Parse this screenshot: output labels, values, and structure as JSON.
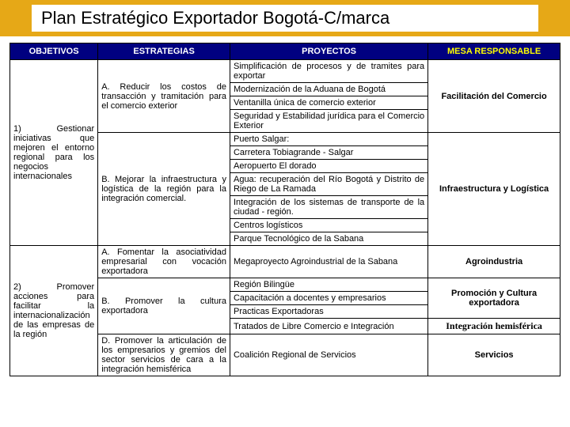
{
  "title": "Plan Estratégico Exportador Bogotá-C/marca",
  "colors": {
    "header_bg": "#000080",
    "header_fg": "#ffffff",
    "mesa_fg": "#ffff00",
    "title_bar_bg": "#e6a817",
    "border": "#000000",
    "page_bg": "#ffffff"
  },
  "headers": {
    "objetivos": "OBJETIVOS",
    "estrategias": "ESTRATEGIAS",
    "proyectos": "PROYECTOS",
    "mesa": "MESA RESPONSABLE"
  },
  "objetivos": {
    "o1": "1) Gestionar iniciativas que mejoren el entorno regional para los negocios internacionales",
    "o2": "2) Promover acciones para facilitar la internacionalización de las empresas de la región"
  },
  "estrategias": {
    "a1": "A. Reducir los costos de transacción y tramitación para el comercio exterior",
    "b1": "B. Mejorar la infraestructura y logística de la región para la integración comercial.",
    "a2": "A. Fomentar la asociatividad empresarial con vocación exportadora",
    "b2": "B. Promover la cultura exportadora",
    "d2": "D. Promover la articulación de los empresarios y gremios del sector servicios de cara a la integración hemisférica"
  },
  "proyectos": {
    "p1": "Simplificación de procesos y de tramites para exportar",
    "p2": "Modernización de la Aduana de Bogotá",
    "p3": "Ventanilla única de comercio exterior",
    "p4": "Seguridad y Estabilidad jurídica para el Comercio Exterior",
    "p5": "Puerto Salgar:",
    "p6": "Carretera Tobiagrande - Salgar",
    "p7": "Aeropuerto El dorado",
    "p8": "Agua: recuperación del Río Bogotá y Distrito de Riego de La Ramada",
    "p9": "Integración de los sistemas de transporte de la ciudad - región.",
    "p10": "Centros logísticos",
    "p11": "Parque Tecnológico de la Sabana",
    "p12": "Megaproyecto Agroindustrial de la Sabana",
    "p13": "Región Bilingüe",
    "p14": "Capacitación a docentes y empresarios",
    "p15": "Practicas Exportadoras",
    "p16": "Tratados de Libre Comercio e Integración",
    "p17": "Coalición Regional de Servicios"
  },
  "mesa": {
    "m1": "Facilitación del Comercio",
    "m2": "Infraestructura y Logística",
    "m3": "Agroindustria",
    "m4": "Promoción y Cultura exportadora",
    "m5": "Integración hemisférica",
    "m6": "Servicios"
  }
}
